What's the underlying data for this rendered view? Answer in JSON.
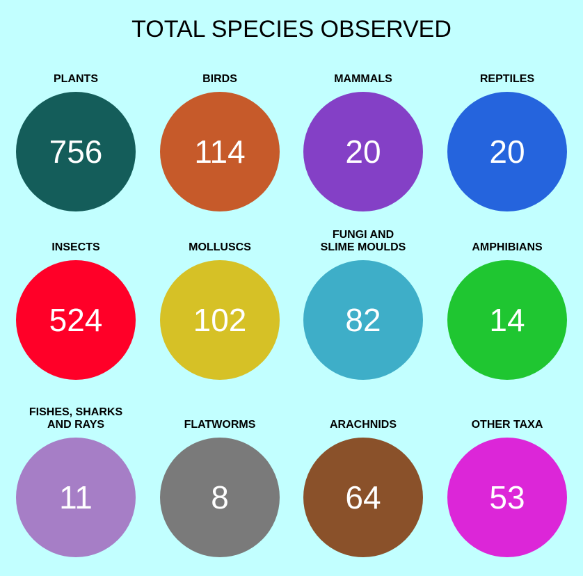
{
  "chart_data": {
    "type": "table",
    "title": "TOTAL SPECIES OBSERVED",
    "categories": [
      "PLANTS",
      "BIRDS",
      "MAMMALS",
      "REPTILES",
      "INSECTS",
      "MOLLUSCS",
      "FUNGI AND\nSLIME MOULDS",
      "AMPHIBIANS",
      "FISHES, SHARKS\nAND RAYS",
      "FLATWORMS",
      "ARACHNIDS",
      "OTHER TAXA"
    ],
    "values": [
      756,
      114,
      20,
      20,
      524,
      102,
      82,
      14,
      11,
      8,
      64,
      53
    ],
    "colors": [
      "#145d5a",
      "#c65a2a",
      "#8440c6",
      "#2564dd",
      "#ff0028",
      "#d6c126",
      "#3eaec8",
      "#1fc631",
      "#a67ec6",
      "#7a7a7a",
      "#8a512a",
      "#dc26d8"
    ]
  }
}
